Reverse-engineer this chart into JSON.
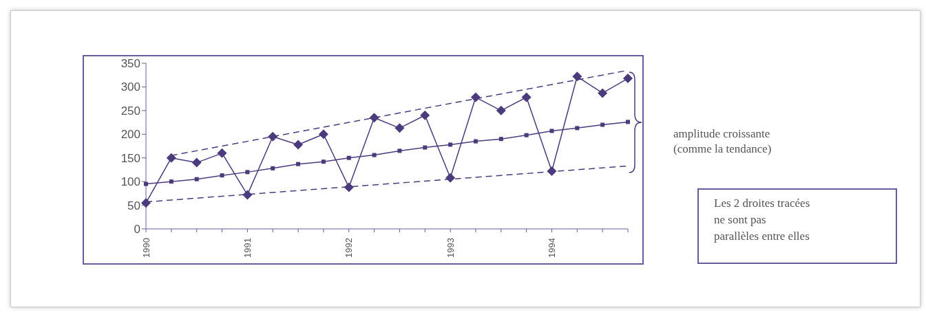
{
  "chart_data": {
    "type": "line",
    "categories": [
      "1990",
      null,
      null,
      null,
      "1991",
      null,
      null,
      null,
      "1992",
      null,
      null,
      null,
      "1993",
      null,
      null,
      null,
      "1994",
      null,
      null,
      null
    ],
    "series": [
      {
        "color": "#4b3a7c",
        "marker": "diamond",
        "line_style": "solid",
        "values": [
          55,
          150,
          140,
          160,
          72,
          195,
          178,
          200,
          88,
          235,
          213,
          240,
          108,
          278,
          250,
          278,
          122,
          322,
          287,
          318
        ]
      },
      {
        "color": "#4b3a7c",
        "marker": "square",
        "line_style": "solid",
        "values": [
          95,
          100,
          105,
          113,
          120,
          128,
          137,
          142,
          150,
          156,
          165,
          172,
          178,
          185,
          190,
          198,
          207,
          213,
          220,
          226
        ]
      },
      {
        "color": "#4b3a7c",
        "marker": "none",
        "line_style": "dashed",
        "values": [
          null,
          155,
          165,
          175,
          185,
          195,
          205,
          215,
          225,
          235,
          245,
          255,
          265,
          275,
          285,
          295,
          305,
          315,
          325,
          335
        ]
      },
      {
        "color": "#4b3a7c",
        "marker": "none",
        "line_style": "dashed",
        "values": [
          57,
          61,
          65,
          69,
          73,
          77,
          81,
          85,
          89,
          93,
          97,
          101,
          105,
          109,
          113,
          117,
          121,
          125,
          129,
          133
        ]
      }
    ],
    "ylim": [
      0,
      350
    ],
    "yticks": [
      0,
      50,
      100,
      150,
      200,
      250,
      300,
      350
    ],
    "annotations": [
      "amplitude croissante\n(comme la tendance)",
      "Les 2 droites tracées\nne sont pas\nparallèles entre elles"
    ]
  }
}
